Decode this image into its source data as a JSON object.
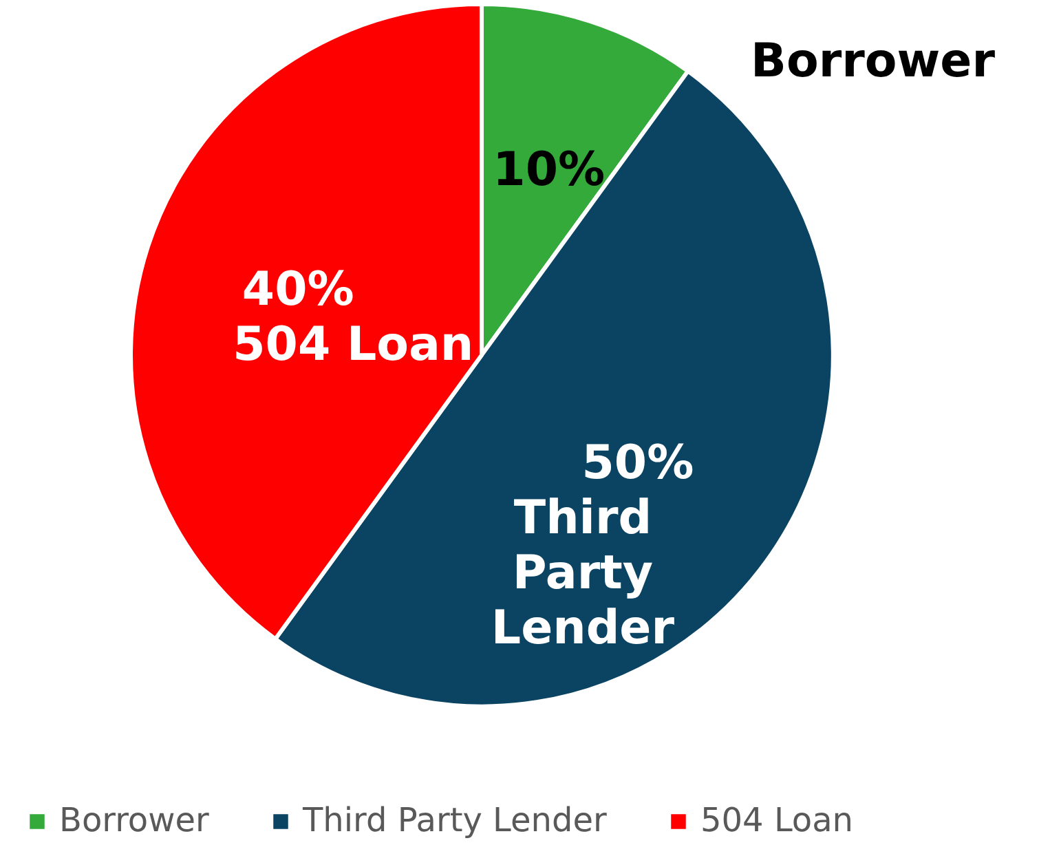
{
  "chart_data": {
    "type": "pie",
    "categories": [
      "Borrower",
      "Third Party Lender",
      "504 Loan"
    ],
    "values": [
      10,
      50,
      40
    ],
    "colors": [
      "#33aa3a",
      "#0b4462",
      "#ff0000"
    ],
    "value_labels": [
      "10%",
      "50%",
      "40%"
    ],
    "legend": "bottom"
  }
}
